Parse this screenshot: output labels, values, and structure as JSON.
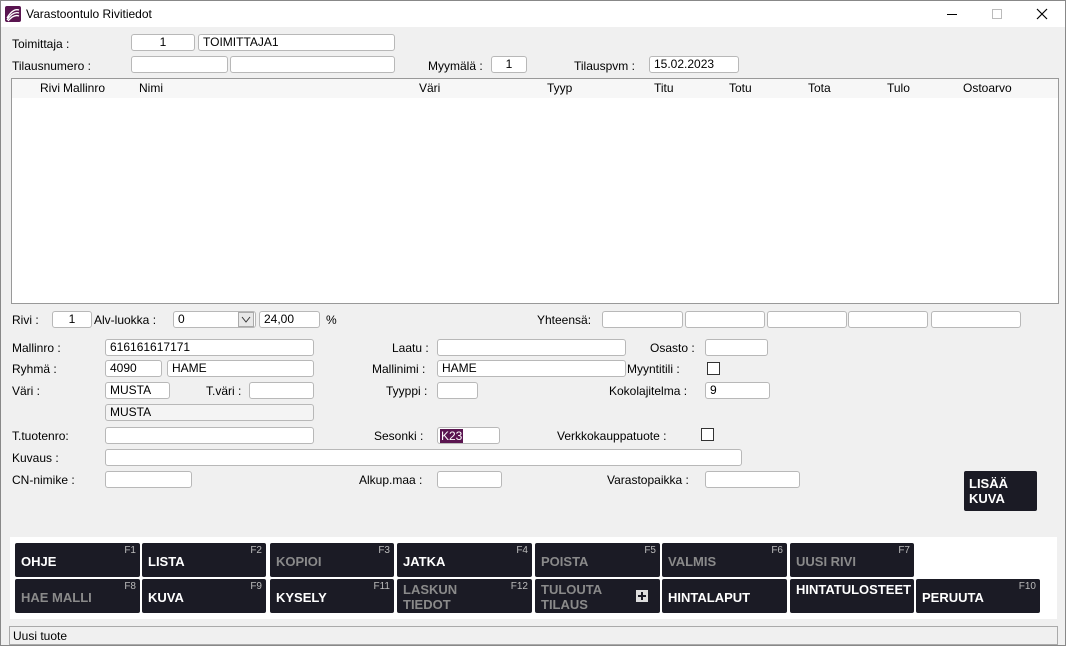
{
  "window": {
    "title": "Varastoontulo Rivitiedot"
  },
  "header": {
    "toimittaja": {
      "label": "Toimittaja :",
      "code": "1",
      "name": "TOIMITTAJA1"
    },
    "tilausnumero": {
      "label": "Tilausnumero :"
    },
    "myymala": {
      "label": "Myymälä :",
      "value": "1"
    },
    "tilauspvm": {
      "label": "Tilauspvm :",
      "value": "15.02.2023"
    }
  },
  "table": {
    "columns": [
      "Rivi",
      "Mallinro",
      "Nimi",
      "Väri",
      "Tyyp",
      "Titu",
      "Totu",
      "Tota",
      "Tulo",
      "Ostoarvo"
    ]
  },
  "row_info": {
    "rivi": {
      "label": "Rivi :",
      "value": "1"
    },
    "alv": {
      "label": "Alv-luokka :",
      "value": "0",
      "rate": "24,00",
      "unit": "%"
    },
    "yhteensa": {
      "label": "Yhteensä:"
    }
  },
  "form": {
    "mallinro": {
      "label": "Mallinro :",
      "value": "616161617171"
    },
    "ryhma": {
      "label": "Ryhmä :",
      "code": "4090",
      "name": "HAME"
    },
    "vari": {
      "label": "Väri :",
      "code": "MUSTA",
      "name": "MUSTA"
    },
    "tvari": {
      "label": "T.väri :"
    },
    "ttuotenro": {
      "label": "T.tuotenro:"
    },
    "kuvaus": {
      "label": "Kuvaus :"
    },
    "cn_nimike": {
      "label": "CN-nimike :"
    },
    "laatu": {
      "label": "Laatu :"
    },
    "mallinimi": {
      "label": "Mallinimi :",
      "value": "HAME"
    },
    "tyyppi": {
      "label": "Tyyppi :"
    },
    "sesonki": {
      "label": "Sesonki :",
      "value": "K23"
    },
    "alkup_maa": {
      "label": "Alkup.maa :"
    },
    "osasto": {
      "label": "Osasto :"
    },
    "myyntitili": {
      "label": "Myyntitili :"
    },
    "kokolajitelma": {
      "label": "Kokolajitelma :",
      "value": "9"
    },
    "verkkokauppatuote": {
      "label": "Verkkokauppatuote :"
    },
    "varastopaikka": {
      "label": "Varastopaikka :"
    }
  },
  "add_image_button": "LISÄÄ KUVA",
  "buttons": [
    [
      {
        "label": "OHJE",
        "key": "F1",
        "enabled": true
      },
      {
        "label": "LISTA",
        "key": "F2",
        "enabled": true
      },
      {
        "label": "KOPIOI",
        "key": "F3",
        "enabled": false
      },
      {
        "label": "JATKA",
        "key": "F4",
        "enabled": true
      },
      {
        "label": "POISTA",
        "key": "F5",
        "enabled": false
      },
      {
        "label": "VALMIS",
        "key": "F6",
        "enabled": false
      },
      {
        "label": "UUSI RIVI",
        "key": "F7",
        "enabled": false
      }
    ],
    [
      {
        "label": "HAE MALLI",
        "key": "F8",
        "enabled": false
      },
      {
        "label": "KUVA",
        "key": "F9",
        "enabled": true
      },
      {
        "label": "KYSELY",
        "key": "F11",
        "enabled": true
      },
      {
        "label": "LASKUN TIEDOT",
        "key": "F12",
        "enabled": false
      },
      {
        "label": "TULOUTA TILAUS",
        "enabled": false
      },
      {
        "label": "HINTALAPUT",
        "enabled": true
      },
      {
        "label": "HINTATULOSTEET",
        "enabled": true
      },
      {
        "label": "PERUUTA",
        "key": "F10",
        "enabled": true
      }
    ]
  ],
  "status": "Uusi tuote"
}
